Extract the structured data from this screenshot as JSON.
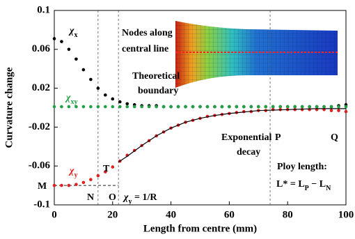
{
  "chart_data": {
    "type": "scatter",
    "x_label": "Length from centre (mm)",
    "y_label": "Curvature change",
    "xlim": [
      0,
      100
    ],
    "xticks": [
      0,
      20,
      40,
      60,
      80,
      100
    ],
    "ylim": [
      -0.1,
      0.1
    ],
    "yticks": [
      -0.1,
      -0.06,
      -0.02,
      0.02,
      0.06,
      0.1
    ],
    "vlines": [
      15,
      22,
      74
    ],
    "hline": -0.08,
    "series": [
      {
        "color": "#000000",
        "x": [
          0,
          2.5,
          5,
          7.5,
          10,
          12.5,
          15,
          17.5,
          20,
          22.5,
          25,
          27.5,
          30,
          32.5,
          35,
          37.5,
          40,
          42.5,
          45,
          47.5,
          50,
          52.5,
          55,
          57.5,
          60,
          62.5,
          65,
          67.5,
          70,
          72.5,
          75,
          77.5,
          80,
          82.5,
          85,
          87.5,
          90,
          92.5,
          95,
          97.5,
          100
        ],
        "values": [
          0.071,
          0.068,
          0.06,
          0.05,
          0.039,
          0.029,
          0.02,
          0.013,
          0.009,
          0.006,
          0.004,
          0.003,
          0.002,
          0.002,
          0.002,
          0.001,
          0.001,
          0.001,
          0.001,
          0.001,
          0.001,
          0.001,
          0.001,
          0.001,
          0.001,
          0.001,
          0.001,
          0.001,
          0.001,
          0.001,
          0.001,
          0.001,
          0.001,
          0.001,
          0.001,
          0.001,
          0.001,
          0.001,
          0.001,
          0.002,
          0.003
        ]
      },
      {
        "color": "#22a045",
        "x": [
          0,
          2.5,
          5,
          7.5,
          10,
          12.5,
          15,
          17.5,
          20,
          22.5,
          25,
          27.5,
          30,
          32.5,
          35,
          37.5,
          40,
          42.5,
          45,
          47.5,
          50,
          52.5,
          55,
          57.5,
          60,
          62.5,
          65,
          67.5,
          70,
          72.5,
          75,
          77.5,
          80,
          82.5,
          85,
          87.5,
          90,
          92.5,
          95,
          97.5,
          100
        ],
        "values": [
          0.001,
          0.001,
          0.001,
          0.001,
          0.001,
          0.001,
          0.001,
          0.001,
          0.001,
          0.001,
          0.001,
          0.001,
          0.001,
          0.001,
          0.001,
          0.001,
          0.001,
          0.001,
          0.001,
          0.001,
          0.001,
          0.001,
          0.001,
          0.001,
          0.001,
          0.001,
          0.001,
          0.001,
          0.001,
          0.001,
          0.001,
          0.001,
          0.001,
          0.001,
          0.001,
          0.001,
          0.001,
          0.001,
          0.001,
          0.001,
          0.001
        ]
      },
      {
        "color": "#e0201f",
        "x": [
          0,
          2.5,
          5,
          7.5,
          10,
          12.5,
          15,
          17.5,
          20,
          22.5,
          25,
          27.5,
          30,
          32.5,
          35,
          37.5,
          40,
          42.5,
          45,
          47.5,
          50,
          52.5,
          55,
          57.5,
          60,
          62.5,
          65,
          67.5,
          70,
          72.5,
          75,
          77.5,
          80,
          82.5,
          85,
          87.5,
          90,
          92.5,
          95,
          97.5,
          100
        ],
        "values": [
          -0.08,
          -0.08,
          -0.08,
          -0.079,
          -0.077,
          -0.074,
          -0.07,
          -0.066,
          -0.061,
          -0.055,
          -0.049,
          -0.044,
          -0.039,
          -0.034,
          -0.029,
          -0.025,
          -0.021,
          -0.018,
          -0.015,
          -0.013,
          -0.011,
          -0.009,
          -0.008,
          -0.007,
          -0.006,
          -0.005,
          -0.004,
          -0.004,
          -0.003,
          -0.003,
          -0.002,
          -0.002,
          -0.002,
          -0.002,
          -0.002,
          -0.002,
          -0.002,
          -0.002,
          -0.003,
          -0.003,
          -0.004
        ]
      }
    ],
    "fit": {
      "color": "#000000",
      "x": [
        22,
        25,
        30,
        35,
        40,
        45,
        50,
        55,
        60,
        70,
        80,
        90,
        100
      ],
      "values": [
        -0.056,
        -0.05,
        -0.039,
        -0.029,
        -0.021,
        -0.015,
        -0.011,
        -0.008,
        -0.006,
        -0.003,
        -0.002,
        -0.001,
        -0.001
      ]
    },
    "annotations": [
      {
        "parts": [
          "χ",
          "x"
        ],
        "color": "#000000"
      },
      {
        "parts": [
          "Nodes along"
        ],
        "color": "#000000"
      },
      {
        "parts": [
          "central line"
        ],
        "color": "#000000"
      },
      {
        "parts": [
          "Theoretical"
        ],
        "color": "#000000"
      },
      {
        "parts": [
          "boundary"
        ],
        "color": "#000000"
      },
      {
        "parts": [
          "χ",
          "xy"
        ],
        "color": "#22a045"
      },
      {
        "parts": [
          "Exponential"
        ],
        "color": "#000000"
      },
      {
        "parts": [
          "decay"
        ],
        "color": "#000000"
      },
      {
        "parts": [
          "P"
        ],
        "color": "#000000"
      },
      {
        "parts": [
          "Q"
        ],
        "color": "#000000"
      },
      {
        "parts": [
          "T"
        ],
        "color": "#000000"
      },
      {
        "parts": [
          "χ",
          "y"
        ],
        "color": "#e0201f"
      },
      {
        "parts": [
          "M"
        ],
        "color": "#000000"
      },
      {
        "parts": [
          "N"
        ],
        "color": "#000000"
      },
      {
        "parts": [
          "O"
        ],
        "color": "#000000"
      },
      {
        "parts": [
          "χ",
          "y",
          " = 1/R"
        ],
        "color": "#000000"
      },
      {
        "parts": [
          "Ploy length:"
        ],
        "color": "#000000"
      },
      {
        "parts": [
          "L* = L",
          "P",
          " − L",
          "N"
        ],
        "color": "#000000"
      }
    ]
  }
}
